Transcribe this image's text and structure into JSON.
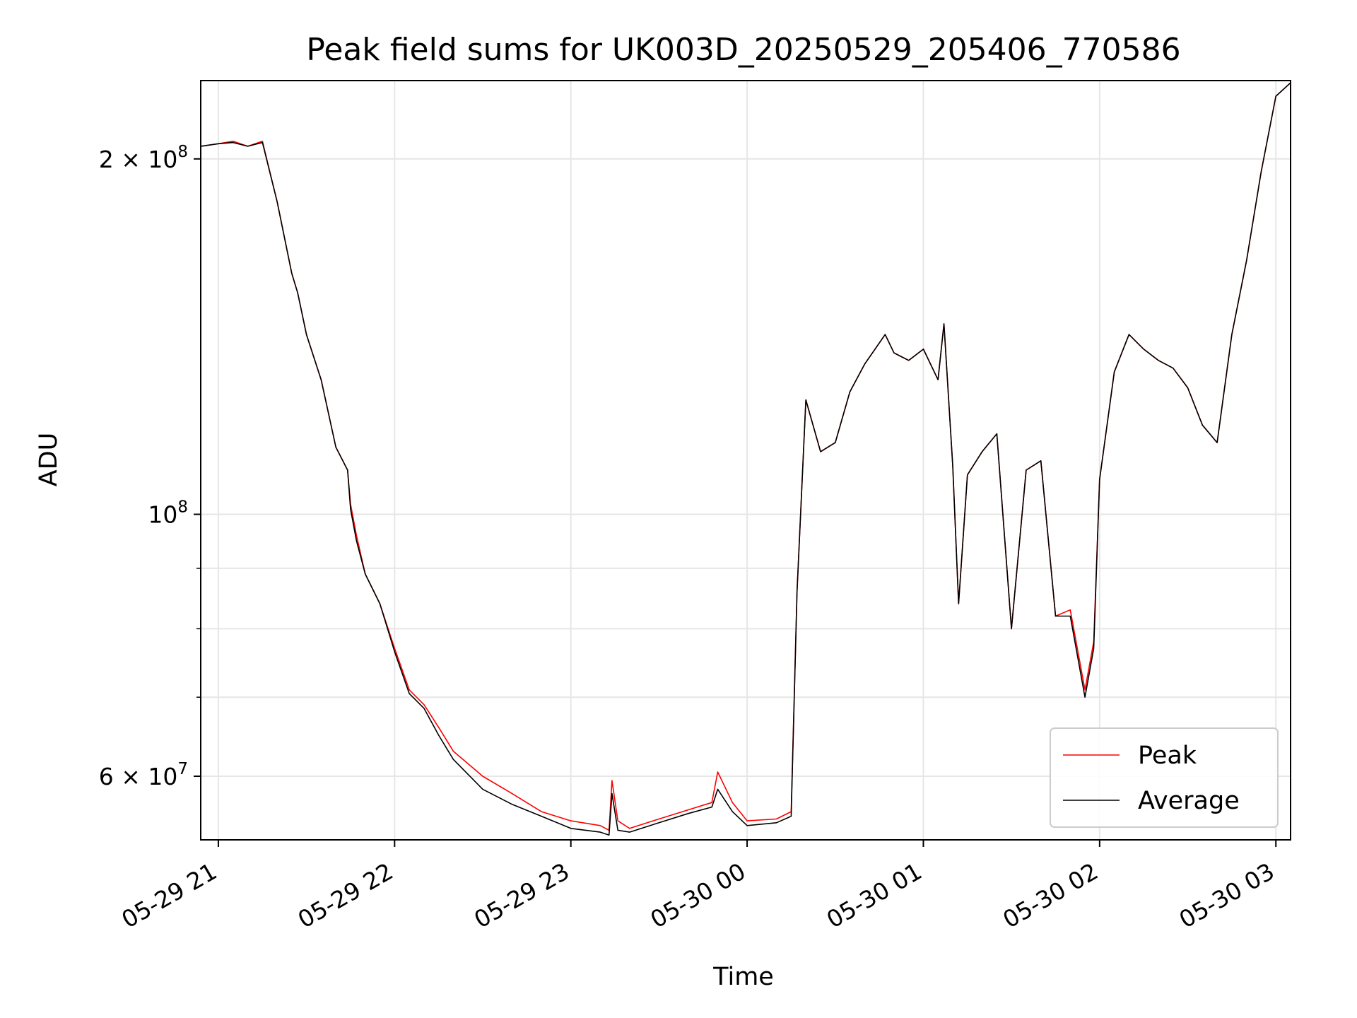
{
  "chart_data": {
    "type": "line",
    "title": "Peak field sums for UK003D_20250529_205406_770586",
    "xlabel": "Time",
    "ylabel": "ADU",
    "x_axis_type": "datetime",
    "y_scale": "log",
    "xlim": [
      "2025-05-29 20:54",
      "2025-05-30 03:05"
    ],
    "ylim": [
      53000000,
      233000000
    ],
    "grid": true,
    "legend_position": "lower-right",
    "x_ticks": [
      {
        "value": "2025-05-29 21:00",
        "label": "05-29 21"
      },
      {
        "value": "2025-05-29 22:00",
        "label": "05-29 22"
      },
      {
        "value": "2025-05-29 23:00",
        "label": "05-29 23"
      },
      {
        "value": "2025-05-30 00:00",
        "label": "05-30 00"
      },
      {
        "value": "2025-05-30 01:00",
        "label": "05-30 01"
      },
      {
        "value": "2025-05-30 02:00",
        "label": "05-30 02"
      },
      {
        "value": "2025-05-30 03:00",
        "label": "05-30 03"
      }
    ],
    "y_major_ticks": [
      {
        "value": 60000000,
        "mantissa": "6",
        "exp": "7"
      },
      {
        "value": 100000000,
        "mantissa": "",
        "exp": "8"
      },
      {
        "value": 200000000,
        "mantissa": "2",
        "exp": "8"
      }
    ],
    "y_minor_ticks": [
      70000000,
      80000000,
      90000000
    ],
    "series": [
      {
        "name": "Peak",
        "color": "#ff0000",
        "x": [
          "2025-05-29 20:54",
          "2025-05-29 21:00",
          "2025-05-29 21:05",
          "2025-05-29 21:10",
          "2025-05-29 21:15",
          "2025-05-29 21:20",
          "2025-05-29 21:25",
          "2025-05-29 21:27",
          "2025-05-29 21:30",
          "2025-05-29 21:35",
          "2025-05-29 21:40",
          "2025-05-29 21:44",
          "2025-05-29 21:45",
          "2025-05-29 21:47",
          "2025-05-29 21:50",
          "2025-05-29 21:55",
          "2025-05-29 22:00",
          "2025-05-29 22:05",
          "2025-05-29 22:10",
          "2025-05-29 22:15",
          "2025-05-29 22:20",
          "2025-05-29 22:30",
          "2025-05-29 22:40",
          "2025-05-29 22:50",
          "2025-05-29 23:00",
          "2025-05-29 23:10",
          "2025-05-29 23:13",
          "2025-05-29 23:14",
          "2025-05-29 23:16",
          "2025-05-29 23:20",
          "2025-05-29 23:30",
          "2025-05-29 23:40",
          "2025-05-29 23:48",
          "2025-05-29 23:50",
          "2025-05-29 23:55",
          "2025-05-30 00:00",
          "2025-05-30 00:10",
          "2025-05-30 00:15",
          "2025-05-30 00:17",
          "2025-05-30 00:20",
          "2025-05-30 00:25",
          "2025-05-30 00:30",
          "2025-05-30 00:35",
          "2025-05-30 00:40",
          "2025-05-30 00:47",
          "2025-05-30 00:50",
          "2025-05-30 00:55",
          "2025-05-30 01:00",
          "2025-05-30 01:05",
          "2025-05-30 01:07",
          "2025-05-30 01:10",
          "2025-05-30 01:12",
          "2025-05-30 01:15",
          "2025-05-30 01:20",
          "2025-05-30 01:25",
          "2025-05-30 01:30",
          "2025-05-30 01:35",
          "2025-05-30 01:40",
          "2025-05-30 01:45",
          "2025-05-30 01:50",
          "2025-05-30 01:55",
          "2025-05-30 01:58",
          "2025-05-30 02:00",
          "2025-05-30 02:05",
          "2025-05-30 02:10",
          "2025-05-30 02:15",
          "2025-05-30 02:20",
          "2025-05-30 02:25",
          "2025-05-30 02:30",
          "2025-05-30 02:35",
          "2025-05-30 02:40",
          "2025-05-30 02:45",
          "2025-05-30 02:50",
          "2025-05-30 02:55",
          "2025-05-30 03:00",
          "2025-05-30 03:05"
        ],
        "y": [
          205000000,
          206000000,
          207000000,
          205000000,
          207000000,
          184000000,
          160000000,
          154000000,
          142000000,
          130000000,
          114000000,
          109000000,
          102000000,
          96000000,
          89000000,
          84000000,
          77000000,
          71000000,
          69000000,
          66000000,
          63000000,
          60000000,
          58000000,
          56000000,
          55000000,
          54500000,
          54000000,
          59500000,
          55000000,
          54200000,
          55200000,
          56200000,
          57000000,
          60500000,
          57000000,
          55000000,
          55200000,
          56000000,
          86000000,
          125000000,
          113000000,
          115000000,
          127000000,
          134000000,
          142000000,
          137000000,
          135000000,
          138000000,
          130000000,
          145000000,
          110000000,
          84000000,
          108000000,
          113000000,
          117000000,
          80000000,
          109000000,
          111000000,
          82000000,
          83000000,
          71000000,
          78000000,
          107000000,
          132000000,
          142000000,
          138000000,
          135000000,
          133000000,
          128000000,
          119000000,
          115000000,
          142000000,
          164000000,
          195000000,
          226000000,
          232000000
        ]
      },
      {
        "name": "Average",
        "color": "#000000",
        "x": [
          "2025-05-29 20:54",
          "2025-05-29 21:00",
          "2025-05-29 21:05",
          "2025-05-29 21:10",
          "2025-05-29 21:15",
          "2025-05-29 21:20",
          "2025-05-29 21:25",
          "2025-05-29 21:27",
          "2025-05-29 21:30",
          "2025-05-29 21:35",
          "2025-05-29 21:40",
          "2025-05-29 21:44",
          "2025-05-29 21:45",
          "2025-05-29 21:47",
          "2025-05-29 21:50",
          "2025-05-29 21:55",
          "2025-05-29 22:00",
          "2025-05-29 22:05",
          "2025-05-29 22:10",
          "2025-05-29 22:15",
          "2025-05-29 22:20",
          "2025-05-29 22:30",
          "2025-05-29 22:40",
          "2025-05-29 22:50",
          "2025-05-29 23:00",
          "2025-05-29 23:10",
          "2025-05-29 23:13",
          "2025-05-29 23:14",
          "2025-05-29 23:16",
          "2025-05-29 23:20",
          "2025-05-29 23:30",
          "2025-05-29 23:40",
          "2025-05-29 23:48",
          "2025-05-29 23:50",
          "2025-05-29 23:55",
          "2025-05-30 00:00",
          "2025-05-30 00:10",
          "2025-05-30 00:15",
          "2025-05-30 00:17",
          "2025-05-30 00:20",
          "2025-05-30 00:25",
          "2025-05-30 00:30",
          "2025-05-30 00:35",
          "2025-05-30 00:40",
          "2025-05-30 00:47",
          "2025-05-30 00:50",
          "2025-05-30 00:55",
          "2025-05-30 01:00",
          "2025-05-30 01:05",
          "2025-05-30 01:07",
          "2025-05-30 01:10",
          "2025-05-30 01:12",
          "2025-05-30 01:15",
          "2025-05-30 01:20",
          "2025-05-30 01:25",
          "2025-05-30 01:30",
          "2025-05-30 01:35",
          "2025-05-30 01:40",
          "2025-05-30 01:45",
          "2025-05-30 01:50",
          "2025-05-30 01:55",
          "2025-05-30 01:58",
          "2025-05-30 02:00",
          "2025-05-30 02:05",
          "2025-05-30 02:10",
          "2025-05-30 02:15",
          "2025-05-30 02:20",
          "2025-05-30 02:25",
          "2025-05-30 02:30",
          "2025-05-30 02:35",
          "2025-05-30 02:40",
          "2025-05-30 02:45",
          "2025-05-30 02:50",
          "2025-05-30 02:55",
          "2025-05-30 03:00",
          "2025-05-30 03:05"
        ],
        "y": [
          205000000,
          206000000,
          206500000,
          205000000,
          206500000,
          184000000,
          160000000,
          154000000,
          142000000,
          130000000,
          114000000,
          109000000,
          101000000,
          95000000,
          89000000,
          84000000,
          76500000,
          70500000,
          68500000,
          65000000,
          62000000,
          58500000,
          56800000,
          55500000,
          54200000,
          53800000,
          53500000,
          58000000,
          54000000,
          53800000,
          54800000,
          55800000,
          56500000,
          58500000,
          56000000,
          54500000,
          54800000,
          55500000,
          86000000,
          125000000,
          113000000,
          115000000,
          127000000,
          134000000,
          142000000,
          137000000,
          135000000,
          138000000,
          130000000,
          145000000,
          110000000,
          84000000,
          108000000,
          113000000,
          117000000,
          80000000,
          109000000,
          111000000,
          82000000,
          82000000,
          70000000,
          77000000,
          107000000,
          132000000,
          142000000,
          138000000,
          135000000,
          133000000,
          128000000,
          119000000,
          115000000,
          142000000,
          164000000,
          195000000,
          226000000,
          232000000
        ]
      }
    ]
  }
}
